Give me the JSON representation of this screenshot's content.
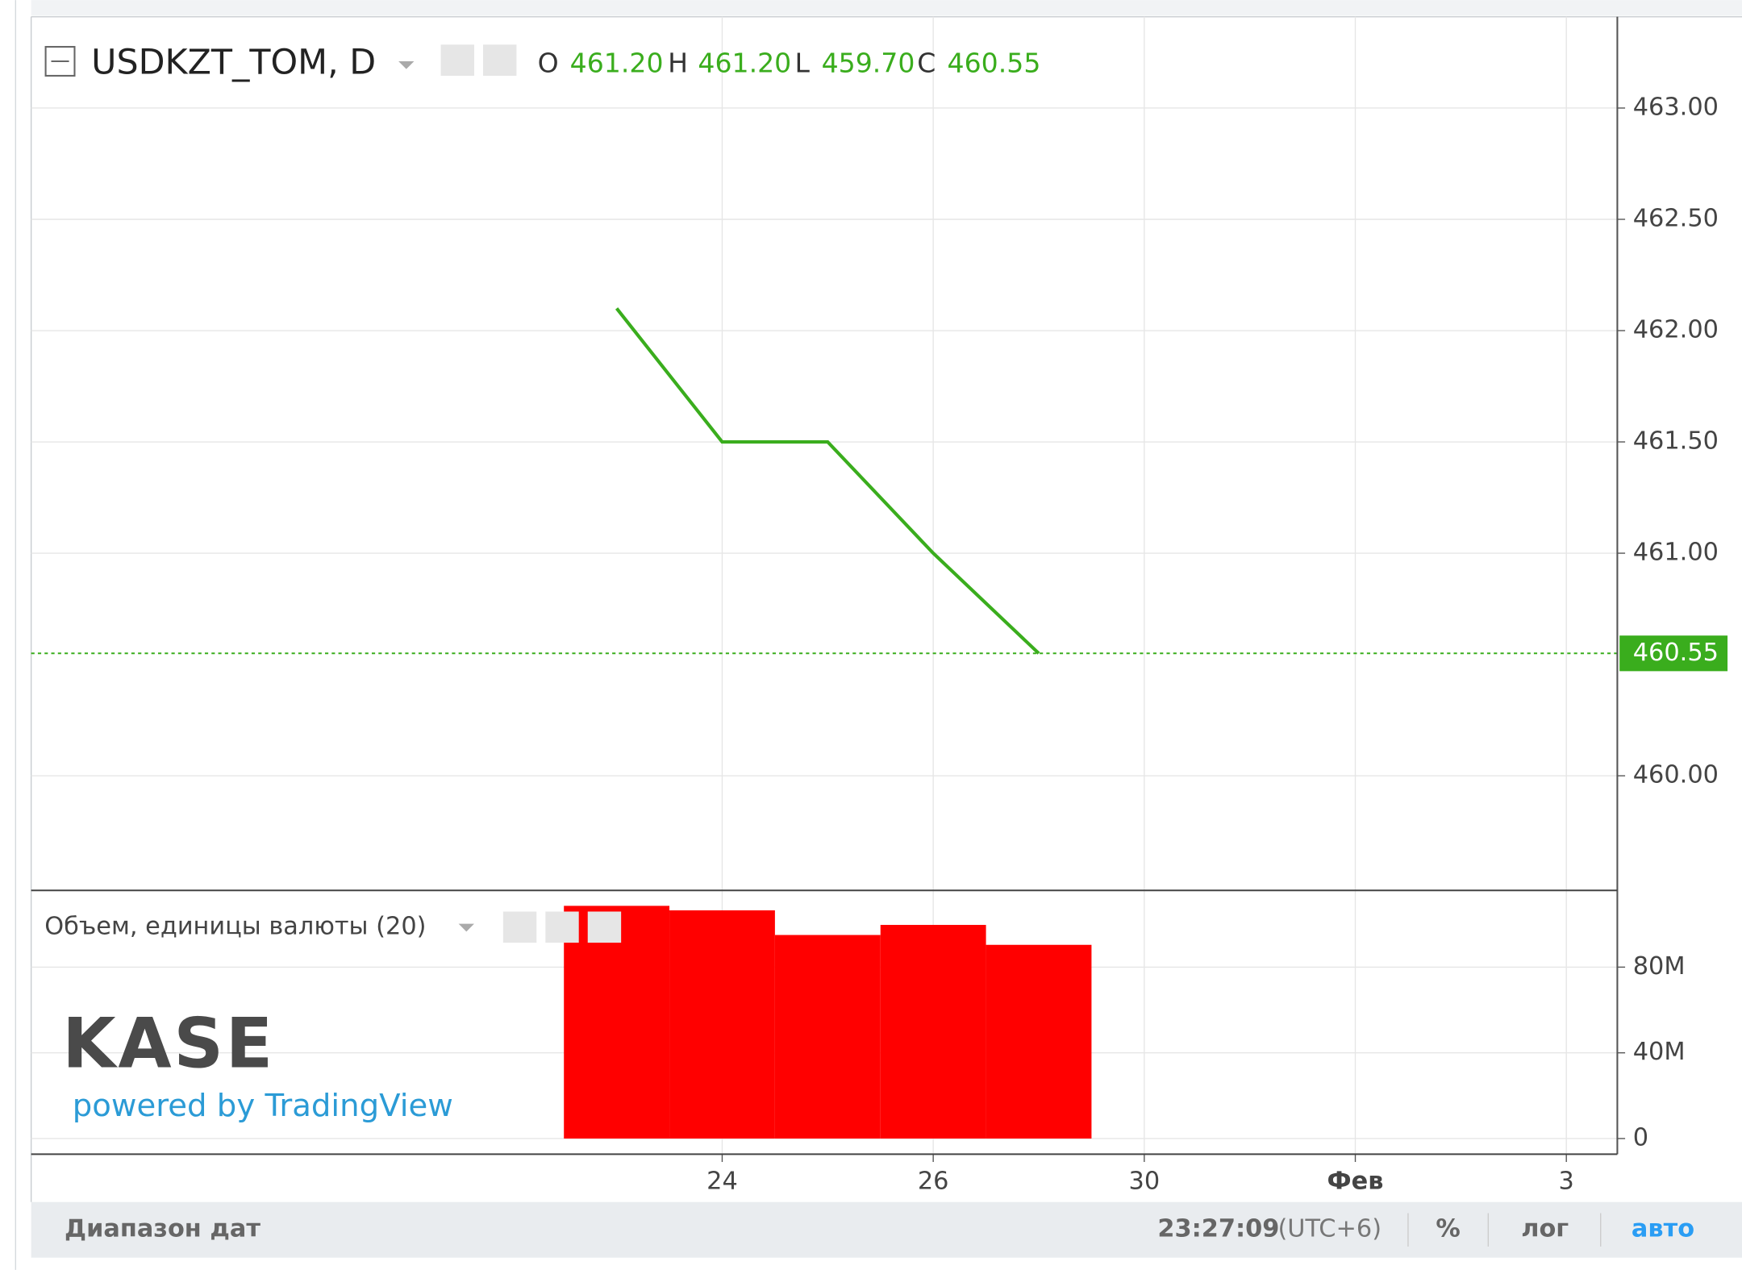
{
  "chart_data": [
    {
      "type": "line",
      "title": "USDKZT_TOM, D",
      "ohlc": [
        {
          "label": "O",
          "value": 461.2,
          "value_label": "461.20"
        },
        {
          "label": "H",
          "value": 461.2,
          "value_label": "461.20"
        },
        {
          "label": "L",
          "value": 459.7,
          "value_label": "459.70"
        },
        {
          "label": "C",
          "value": 460.55,
          "value_label": "460.55"
        }
      ],
      "categories": [
        null,
        "24",
        null,
        "26",
        null,
        "30",
        null,
        "Фев",
        null,
        "3"
      ],
      "series": [
        {
          "color": "#3aad1d",
          "values": [
            462.1,
            461.5,
            461.5,
            461.0,
            460.55,
            null,
            null,
            null,
            null,
            null
          ]
        }
      ],
      "ylim": [
        459.485,
        463.41
      ],
      "yticks": [
        {
          "value": 460,
          "label": "460.00"
        },
        {
          "value": 461,
          "label": "461.00"
        },
        {
          "value": 461.5,
          "label": "461.50"
        },
        {
          "value": 462,
          "label": "462.00"
        },
        {
          "value": 462.5,
          "label": "462.50"
        },
        {
          "value": 463,
          "label": "463.00"
        }
      ],
      "grid": true
    },
    {
      "type": "bar",
      "title": "Объем, единицы валюты (20)",
      "values": [
        108600000,
        106500000,
        95000000,
        99700000,
        90400000,
        null,
        null,
        null,
        null,
        null
      ],
      "color": "#ff0000",
      "ylim": [
        -7300000,
        115800000
      ],
      "yticks": [
        0,
        {
          "value": 40000000,
          "label": "40M"
        },
        {
          "value": 80000000,
          "label": "80M"
        }
      ],
      "grid": true
    }
  ],
  "logo": {
    "brand": "KASE",
    "tagline": "powered by TradingView"
  },
  "footer": {
    "date_range": "Диапазон дат",
    "time": "23:27:09",
    "timezone": "(UTC+6)",
    "percent": "%",
    "log": "лог",
    "auto": "авто"
  }
}
